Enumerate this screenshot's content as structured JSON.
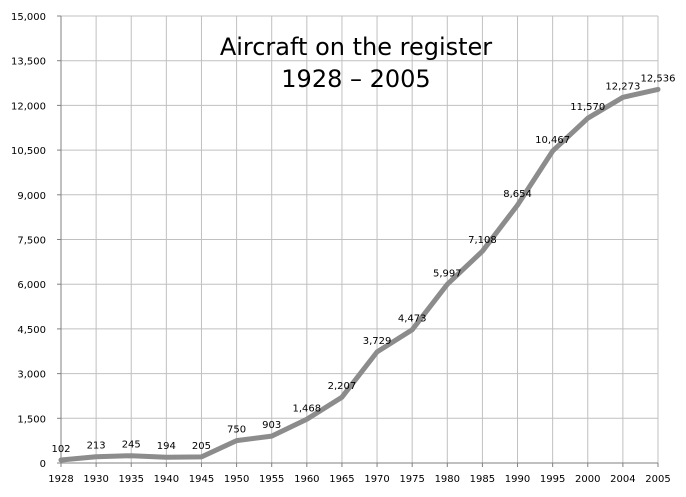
{
  "chart_data": {
    "type": "line",
    "title": "Aircraft on the register",
    "subtitle": "1928 – 2005",
    "xlabel": "",
    "ylabel": "",
    "ylim": [
      0,
      15000
    ],
    "yticks": [
      0,
      1500,
      3000,
      4500,
      6000,
      7500,
      9000,
      10500,
      12000,
      13500,
      15000
    ],
    "ytick_labels": [
      "0",
      "1,500",
      "3,000",
      "4,500",
      "6,000",
      "7,500",
      "9,000",
      "10,500",
      "12,000",
      "13,500",
      "15,000"
    ],
    "grid": true,
    "legend": "none",
    "categories": [
      "1928",
      "1930",
      "1935",
      "1940",
      "1945",
      "1950",
      "1955",
      "1960",
      "1965",
      "1970",
      "1975",
      "1980",
      "1985",
      "1990",
      "1995",
      "2000",
      "2004",
      "2005"
    ],
    "series": [
      {
        "values": [
          102,
          213,
          245,
          194,
          205,
          750,
          903,
          1468,
          2207,
          3729,
          4473,
          5997,
          7108,
          8654,
          10467,
          11570,
          12273,
          12536
        ],
        "labels": [
          "102",
          "213",
          "245",
          "194",
          "205",
          "750",
          "903",
          "1,468",
          "2,207",
          "3,729",
          "4,473",
          "5,997",
          "7,108",
          "8,654",
          "10,467",
          "11,570",
          "12,273",
          "12,536"
        ],
        "color": "#8c8c8c"
      }
    ],
    "colors": {
      "grid": "#c0c0c0",
      "axis": "#808080",
      "line": "#8c8c8c"
    }
  }
}
